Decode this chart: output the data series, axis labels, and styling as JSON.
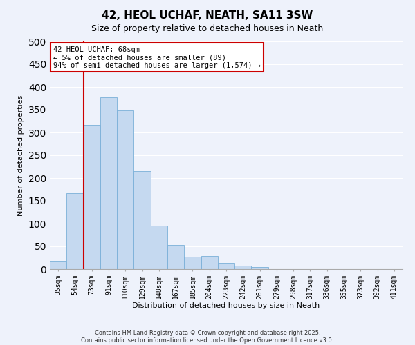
{
  "title": "42, HEOL UCHAF, NEATH, SA11 3SW",
  "subtitle": "Size of property relative to detached houses in Neath",
  "xlabel": "Distribution of detached houses by size in Neath",
  "ylabel": "Number of detached properties",
  "bar_labels": [
    "35sqm",
    "54sqm",
    "73sqm",
    "91sqm",
    "110sqm",
    "129sqm",
    "148sqm",
    "167sqm",
    "185sqm",
    "204sqm",
    "223sqm",
    "242sqm",
    "261sqm",
    "279sqm",
    "298sqm",
    "317sqm",
    "336sqm",
    "355sqm",
    "373sqm",
    "392sqm",
    "411sqm"
  ],
  "bar_values": [
    18,
    167,
    317,
    378,
    348,
    215,
    96,
    53,
    28,
    29,
    14,
    8,
    5,
    0,
    0,
    0,
    0,
    0,
    0,
    0,
    0
  ],
  "bar_color": "#c5d9f0",
  "bar_edge_color": "#7ab0d8",
  "vline_x_index": 2,
  "vline_color": "#cc0000",
  "ylim": [
    0,
    500
  ],
  "yticks": [
    0,
    50,
    100,
    150,
    200,
    250,
    300,
    350,
    400,
    450,
    500
  ],
  "annotation_title": "42 HEOL UCHAF: 68sqm",
  "annotation_line1": "← 5% of detached houses are smaller (89)",
  "annotation_line2": "94% of semi-detached houses are larger (1,574) →",
  "annotation_box_facecolor": "#ffffff",
  "annotation_box_edgecolor": "#cc0000",
  "footer1": "Contains HM Land Registry data © Crown copyright and database right 2025.",
  "footer2": "Contains public sector information licensed under the Open Government Licence v3.0.",
  "bg_color": "#eef2fb",
  "plot_bg_color": "#eef2fb",
  "grid_color": "#ffffff",
  "title_fontsize": 11,
  "subtitle_fontsize": 9,
  "ylabel_fontsize": 8,
  "xlabel_fontsize": 8,
  "tick_fontsize": 7,
  "footer_fontsize": 6
}
